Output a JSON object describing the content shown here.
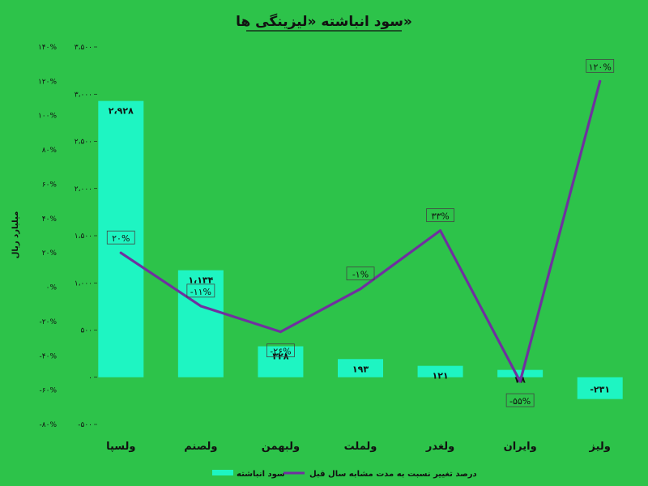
{
  "chart_data": {
    "type": "bar+line",
    "title": "سود انباشته «لیزینگی ها»",
    "ylabel_left": "میلیارد ریال",
    "categories": [
      "ولسپا",
      "ولصنم",
      "ولبهمن",
      "ولملت",
      "ولغدر",
      "وایران",
      "ولیز"
    ],
    "series": [
      {
        "name": "سود انباشته",
        "type": "bar",
        "axis": "left",
        "color": "#1ef5c2",
        "values": [
          2928,
          1134,
          328,
          193,
          121,
          78,
          -231
        ],
        "labels": [
          "۲،۹۲۸",
          "۱،۱۳۴",
          "۳۲۸",
          "۱۹۳",
          "۱۲۱",
          "۷۸",
          "-۲۳۱"
        ]
      },
      {
        "name": "درصد تغییر نسبت به مدت مشابه سال قبل",
        "type": "line",
        "axis": "right",
        "color": "#7030a0",
        "values": [
          20,
          -11,
          -26,
          -1,
          33,
          -55,
          120
        ],
        "labels": [
          "۲۰%",
          "-۱۱%",
          "-۲۶%",
          "-۱%",
          "۳۳%",
          "-۵۵%",
          "۱۲۰%"
        ]
      }
    ],
    "left_axis": {
      "ylim": [
        -500,
        3500
      ],
      "ticks": [
        3500,
        3000,
        2500,
        2000,
        1500,
        1000,
        500,
        0,
        -500
      ],
      "tick_labels": [
        "۳،۵۰۰",
        "۳،۰۰۰",
        "۲،۵۰۰",
        "۲،۰۰۰",
        "۱،۵۰۰",
        "۱،۰۰۰",
        "۵۰۰",
        "۰",
        "-۵۰۰"
      ]
    },
    "right_axis": {
      "ylim": [
        -80,
        140
      ],
      "ticks": [
        140,
        120,
        100,
        80,
        60,
        40,
        20,
        0,
        -20,
        -40,
        -60,
        -80
      ],
      "tick_labels": [
        "۱۴۰%",
        "۱۲۰%",
        "۱۰۰%",
        "۸۰%",
        "۶۰%",
        "۴۰%",
        "۲۰%",
        "۰%",
        "-۲۰%",
        "-۴۰%",
        "-۶۰%",
        "-۸۰%"
      ]
    },
    "grid": false,
    "legend_position": "bottom",
    "background_color": "#2dc34a"
  }
}
